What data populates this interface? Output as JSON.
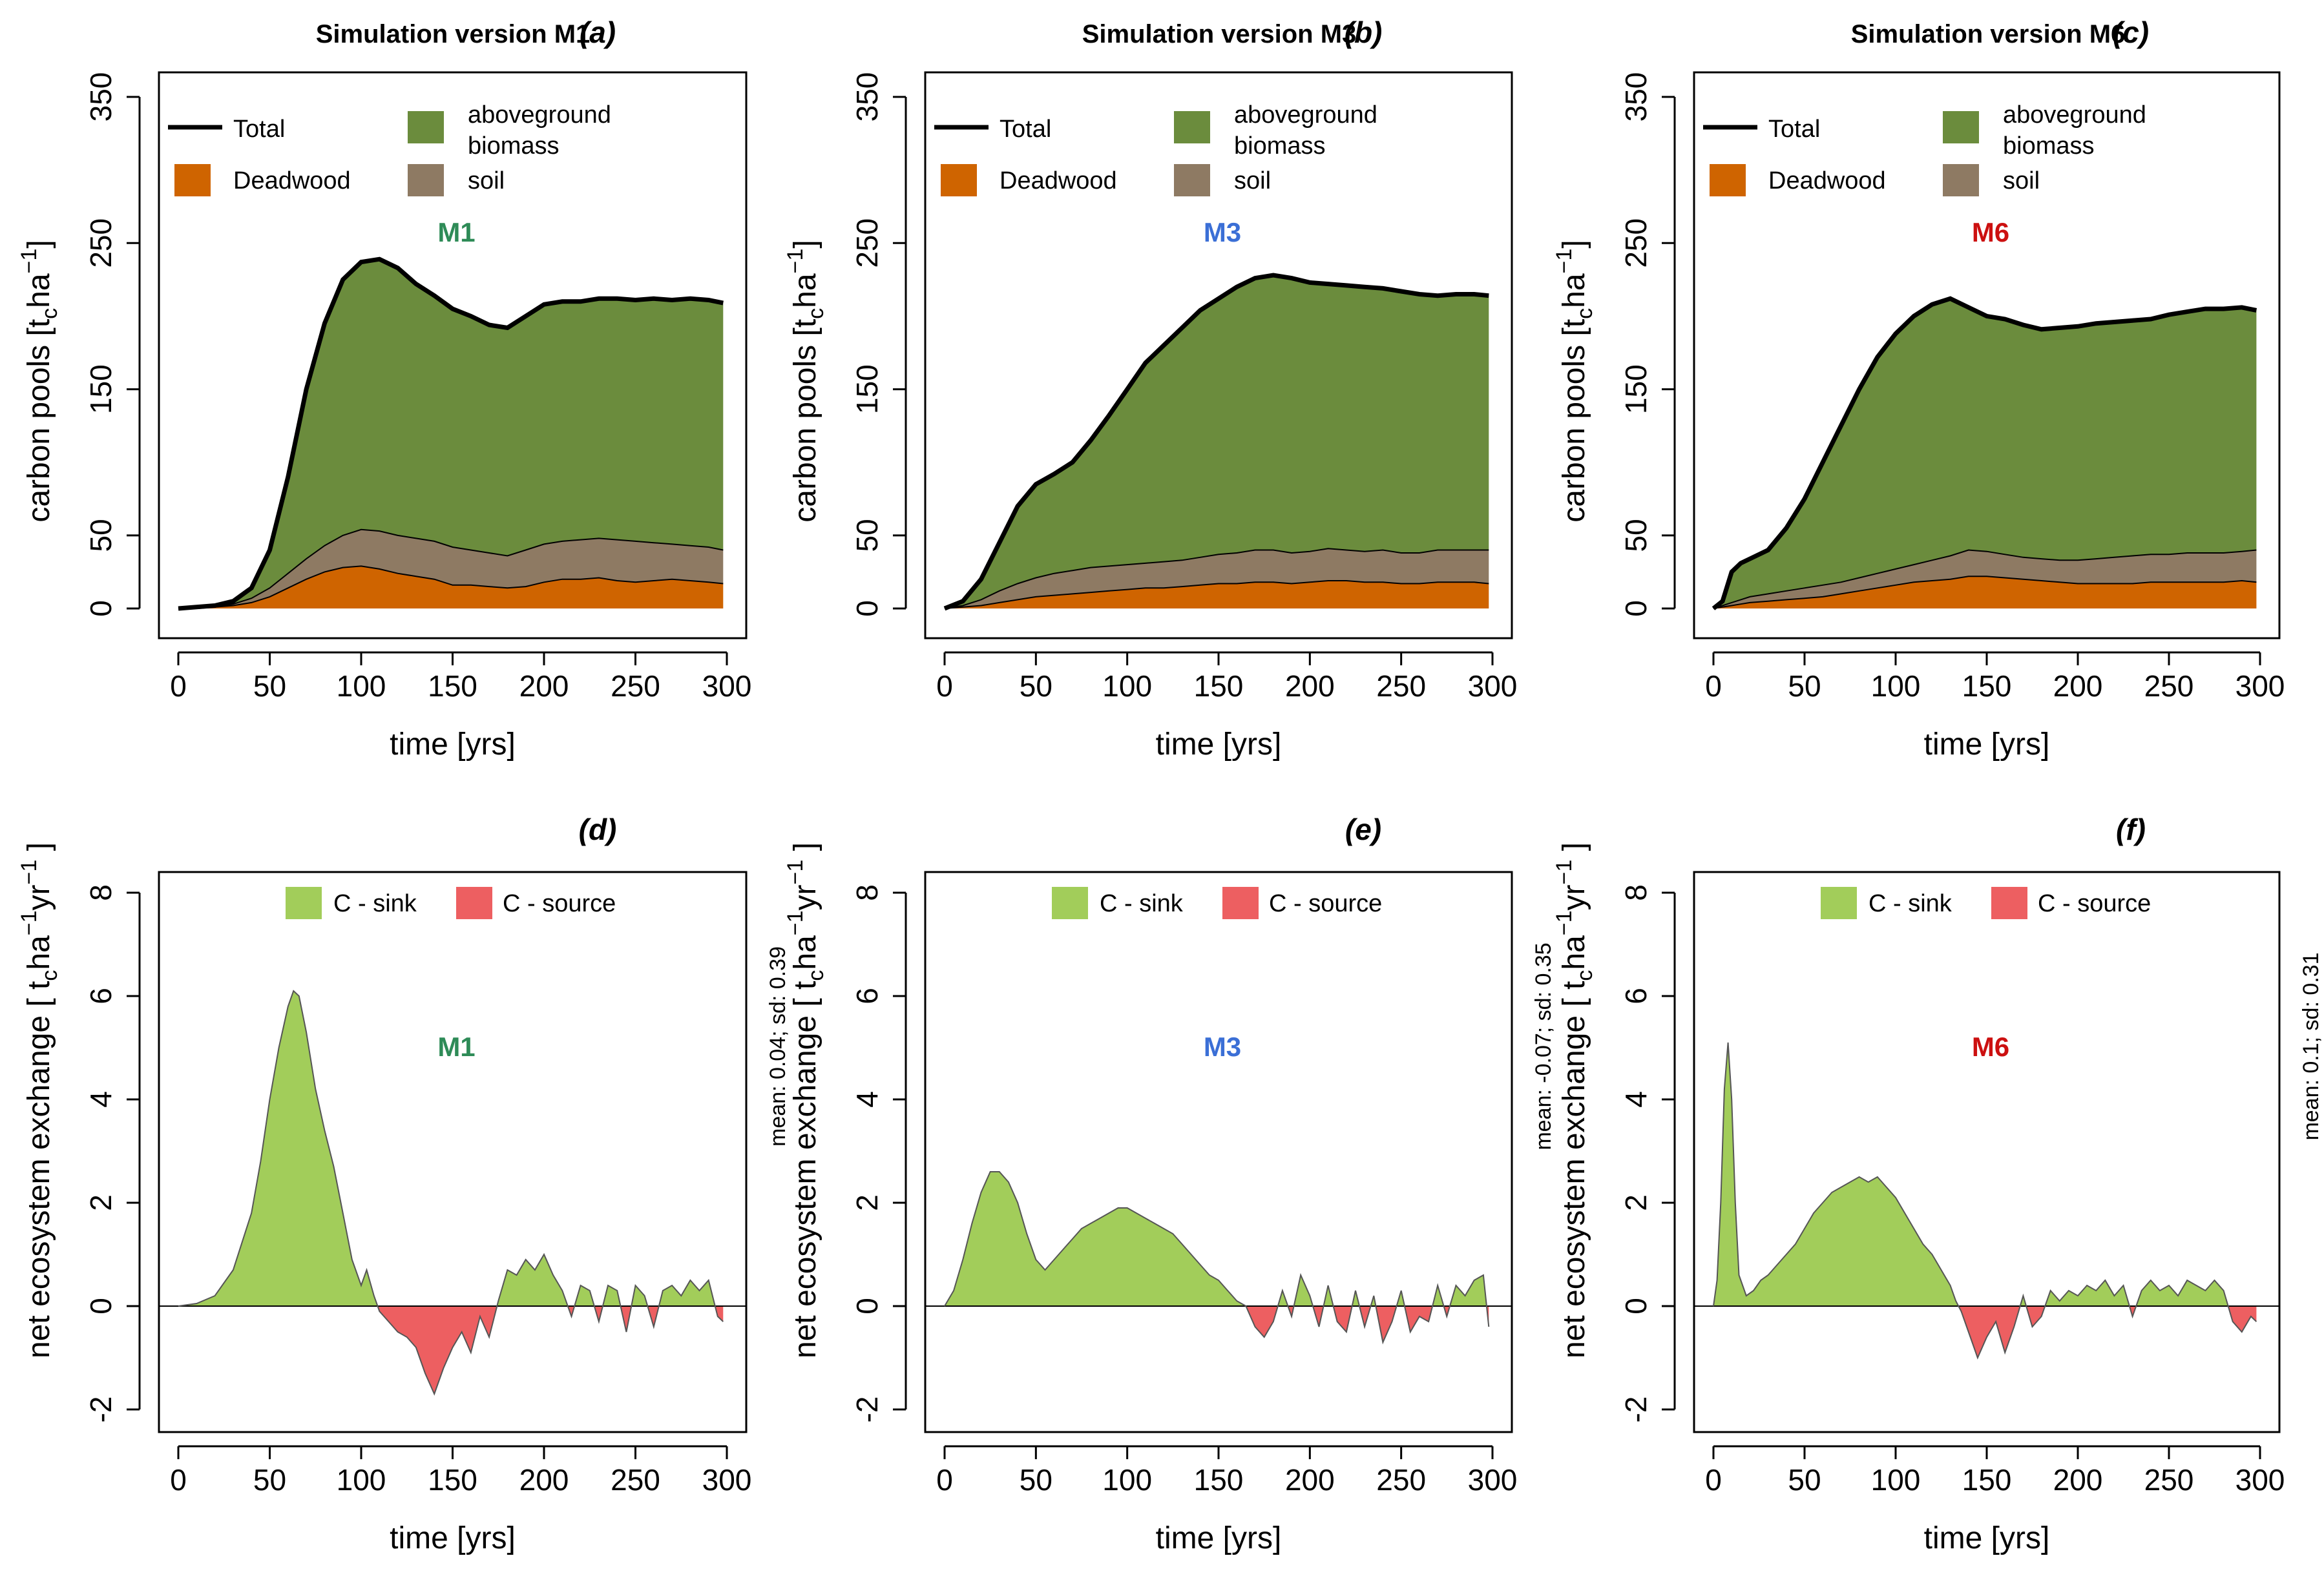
{
  "colors": {
    "deadwood": "#cf6400",
    "soil": "#8e7a63",
    "agb": "#6b8c3d",
    "sink": "#a2cd5a",
    "source": "#ed5f61",
    "M1": "#2e8b57",
    "M3": "#3b6fd6",
    "M6": "#cc1010"
  },
  "chart_data": [
    {
      "type": "area",
      "id": "a",
      "panel_label": "(a)",
      "title": "Simulation version M1",
      "model": "M1",
      "xlabel": "time [yrs]",
      "ylabel_parts": [
        "carbon pools [t",
        "c",
        "ha",
        "−1",
        "]"
      ],
      "xlim": [
        0,
        300
      ],
      "ylim": [
        0,
        350
      ],
      "xticks": [
        0,
        50,
        100,
        150,
        200,
        250,
        300
      ],
      "yticks": [
        0,
        50,
        150,
        250,
        350
      ],
      "legend": {
        "total": "Total",
        "deadwood": "Deadwood",
        "agb": "aboveground",
        "agb2": "biomass",
        "soil": "soil"
      },
      "x": [
        0,
        10,
        20,
        30,
        40,
        50,
        60,
        70,
        80,
        90,
        100,
        110,
        120,
        130,
        140,
        150,
        160,
        170,
        180,
        190,
        200,
        210,
        220,
        230,
        240,
        250,
        260,
        270,
        280,
        290,
        298
      ],
      "series": [
        {
          "name": "Deadwood",
          "values": [
            0,
            0,
            1,
            2,
            4,
            8,
            14,
            20,
            25,
            28,
            29,
            27,
            24,
            22,
            20,
            16,
            16,
            15,
            14,
            15,
            18,
            20,
            20,
            21,
            19,
            18,
            19,
            20,
            19,
            18,
            17
          ]
        },
        {
          "name": "soil_top",
          "values": [
            0,
            0,
            1,
            3,
            7,
            14,
            24,
            34,
            43,
            50,
            54,
            53,
            50,
            48,
            46,
            42,
            40,
            38,
            36,
            40,
            44,
            46,
            47,
            48,
            47,
            46,
            45,
            44,
            43,
            42,
            40
          ]
        },
        {
          "name": "Total",
          "values": [
            0,
            1,
            2,
            5,
            14,
            40,
            90,
            150,
            195,
            225,
            237,
            239,
            233,
            222,
            214,
            205,
            200,
            194,
            192,
            200,
            208,
            210,
            210,
            212,
            212,
            211,
            212,
            211,
            212,
            211,
            209
          ]
        }
      ]
    },
    {
      "type": "area",
      "id": "b",
      "panel_label": "(b)",
      "title": "Simulation version M3",
      "model": "M3",
      "xlabel": "time [yrs]",
      "ylabel_parts": [
        "carbon pools [t",
        "c",
        "ha",
        "−1",
        "]"
      ],
      "xlim": [
        0,
        300
      ],
      "ylim": [
        0,
        350
      ],
      "xticks": [
        0,
        50,
        100,
        150,
        200,
        250,
        300
      ],
      "yticks": [
        0,
        50,
        150,
        250,
        350
      ],
      "legend": {
        "total": "Total",
        "deadwood": "Deadwood",
        "agb": "aboveground",
        "agb2": "biomass",
        "soil": "soil"
      },
      "x": [
        0,
        10,
        20,
        30,
        40,
        50,
        60,
        70,
        80,
        90,
        100,
        110,
        120,
        130,
        140,
        150,
        160,
        170,
        180,
        190,
        200,
        210,
        220,
        230,
        240,
        250,
        260,
        270,
        280,
        290,
        298
      ],
      "series": [
        {
          "name": "Deadwood",
          "values": [
            0,
            1,
            2,
            4,
            6,
            8,
            9,
            10,
            11,
            12,
            13,
            14,
            14,
            15,
            16,
            17,
            17,
            18,
            18,
            17,
            18,
            19,
            19,
            18,
            18,
            17,
            17,
            18,
            18,
            18,
            17
          ]
        },
        {
          "name": "soil_top",
          "values": [
            0,
            2,
            6,
            12,
            17,
            21,
            24,
            26,
            28,
            29,
            30,
            31,
            32,
            33,
            35,
            37,
            38,
            40,
            40,
            38,
            39,
            41,
            40,
            39,
            40,
            38,
            38,
            40,
            40,
            40,
            40
          ]
        },
        {
          "name": "Total",
          "values": [
            0,
            5,
            20,
            45,
            70,
            85,
            92,
            100,
            115,
            132,
            150,
            168,
            180,
            192,
            204,
            212,
            220,
            226,
            228,
            226,
            223,
            222,
            221,
            220,
            219,
            217,
            215,
            214,
            215,
            215,
            214
          ]
        }
      ]
    },
    {
      "type": "area",
      "id": "c",
      "panel_label": "(c)",
      "title": "Simulation version M6",
      "model": "M6",
      "xlabel": "time [yrs]",
      "ylabel_parts": [
        "carbon pools [t",
        "c",
        "ha",
        "−1",
        "]"
      ],
      "xlim": [
        0,
        300
      ],
      "ylim": [
        0,
        350
      ],
      "xticks": [
        0,
        50,
        100,
        150,
        200,
        250,
        300
      ],
      "yticks": [
        0,
        50,
        150,
        250,
        350
      ],
      "legend": {
        "total": "Total",
        "deadwood": "Deadwood",
        "agb": "aboveground",
        "agb2": "biomass",
        "soil": "soil"
      },
      "x": [
        0,
        5,
        10,
        15,
        20,
        30,
        40,
        50,
        60,
        70,
        80,
        90,
        100,
        110,
        120,
        130,
        140,
        150,
        160,
        170,
        180,
        190,
        200,
        210,
        220,
        230,
        240,
        250,
        260,
        270,
        280,
        290,
        298
      ],
      "series": [
        {
          "name": "Deadwood",
          "values": [
            0,
            1,
            2,
            3,
            4,
            5,
            6,
            7,
            8,
            10,
            12,
            14,
            16,
            18,
            19,
            20,
            22,
            22,
            21,
            20,
            19,
            18,
            17,
            17,
            17,
            17,
            18,
            18,
            18,
            18,
            18,
            19,
            18
          ]
        },
        {
          "name": "soil_top",
          "values": [
            0,
            2,
            4,
            6,
            8,
            10,
            12,
            14,
            16,
            18,
            21,
            24,
            27,
            30,
            33,
            36,
            40,
            39,
            37,
            35,
            34,
            33,
            33,
            34,
            35,
            36,
            37,
            37,
            38,
            38,
            38,
            39,
            40
          ]
        },
        {
          "name": "Total",
          "values": [
            0,
            5,
            25,
            31,
            34,
            40,
            55,
            75,
            100,
            125,
            150,
            172,
            188,
            200,
            208,
            212,
            206,
            200,
            198,
            194,
            191,
            192,
            193,
            195,
            196,
            197,
            198,
            201,
            203,
            205,
            205,
            206,
            204
          ]
        }
      ]
    },
    {
      "type": "area",
      "id": "d",
      "panel_label": "(d)",
      "model": "M1",
      "xlabel": "time [yrs]",
      "ylabel_parts": [
        "net ecosystem exchange [ t",
        "c",
        "ha",
        "−1",
        "yr",
        "−1",
        " ]"
      ],
      "stat_text": "mean: 0.04; sd: 0.39",
      "xlim": [
        0,
        300
      ],
      "ylim": [
        -2,
        8
      ],
      "xticks": [
        0,
        50,
        100,
        150,
        200,
        250,
        300
      ],
      "yticks": [
        -2,
        0,
        2,
        4,
        6,
        8
      ],
      "legend": {
        "sink": "C - sink",
        "source": "C - source"
      },
      "x": [
        0,
        10,
        20,
        30,
        40,
        45,
        50,
        55,
        60,
        63,
        66,
        70,
        75,
        80,
        85,
        90,
        95,
        100,
        103,
        107,
        110,
        115,
        120,
        125,
        130,
        135,
        140,
        145,
        150,
        155,
        160,
        165,
        170,
        175,
        180,
        185,
        190,
        195,
        200,
        205,
        210,
        215,
        220,
        225,
        230,
        235,
        240,
        245,
        250,
        255,
        260,
        265,
        270,
        275,
        280,
        285,
        290,
        295,
        298
      ],
      "values": [
        0,
        0.05,
        0.2,
        0.7,
        1.8,
        2.8,
        4.0,
        5.0,
        5.8,
        6.1,
        6.0,
        5.3,
        4.2,
        3.4,
        2.7,
        1.8,
        0.9,
        0.4,
        0.7,
        0.2,
        -0.1,
        -0.3,
        -0.5,
        -0.6,
        -0.8,
        -1.3,
        -1.7,
        -1.2,
        -0.8,
        -0.5,
        -0.9,
        -0.2,
        -0.6,
        0.1,
        0.7,
        0.6,
        0.9,
        0.7,
        1.0,
        0.6,
        0.3,
        -0.2,
        0.4,
        0.3,
        -0.3,
        0.4,
        0.3,
        -0.5,
        0.4,
        0.2,
        -0.4,
        0.3,
        0.4,
        0.2,
        0.5,
        0.3,
        0.5,
        -0.2,
        -0.3
      ]
    },
    {
      "type": "area",
      "id": "e",
      "panel_label": "(e)",
      "model": "M3",
      "xlabel": "time [yrs]",
      "ylabel_parts": [
        "net ecosystem exchange [ t",
        "c",
        "ha",
        "−1",
        "yr",
        "−1",
        " ]"
      ],
      "stat_text": "mean: -0.07; sd: 0.35",
      "xlim": [
        0,
        300
      ],
      "ylim": [
        -2,
        8
      ],
      "xticks": [
        0,
        50,
        100,
        150,
        200,
        250,
        300
      ],
      "yticks": [
        -2,
        0,
        2,
        4,
        6,
        8
      ],
      "legend": {
        "sink": "C - sink",
        "source": "C - source"
      },
      "x": [
        0,
        5,
        10,
        15,
        20,
        25,
        30,
        35,
        40,
        45,
        50,
        55,
        60,
        65,
        70,
        75,
        80,
        85,
        90,
        95,
        100,
        105,
        110,
        115,
        120,
        125,
        130,
        135,
        140,
        145,
        150,
        155,
        160,
        165,
        170,
        175,
        180,
        185,
        190,
        195,
        200,
        205,
        210,
        215,
        220,
        225,
        230,
        235,
        240,
        245,
        250,
        255,
        260,
        265,
        270,
        275,
        280,
        285,
        290,
        295,
        298
      ],
      "values": [
        0,
        0.3,
        0.9,
        1.6,
        2.2,
        2.6,
        2.6,
        2.4,
        2.0,
        1.4,
        0.9,
        0.7,
        0.9,
        1.1,
        1.3,
        1.5,
        1.6,
        1.7,
        1.8,
        1.9,
        1.9,
        1.8,
        1.7,
        1.6,
        1.5,
        1.4,
        1.2,
        1.0,
        0.8,
        0.6,
        0.5,
        0.3,
        0.1,
        0.0,
        -0.4,
        -0.6,
        -0.3,
        0.3,
        -0.2,
        0.6,
        0.2,
        -0.4,
        0.4,
        -0.3,
        -0.5,
        0.3,
        -0.4,
        0.2,
        -0.7,
        -0.3,
        0.3,
        -0.5,
        -0.2,
        -0.3,
        0.4,
        -0.2,
        0.4,
        0.2,
        0.5,
        0.6,
        -0.4
      ]
    },
    {
      "type": "area",
      "id": "f",
      "panel_label": "(f)",
      "model": "M6",
      "xlabel": "time [yrs]",
      "ylabel_parts": [
        "net ecosystem exchange [ t",
        "c",
        "ha",
        "−1",
        "yr",
        "−1",
        " ]"
      ],
      "stat_text": "mean: 0.1; sd: 0.31",
      "xlim": [
        0,
        300
      ],
      "ylim": [
        -2,
        8
      ],
      "xticks": [
        0,
        50,
        100,
        150,
        200,
        250,
        300
      ],
      "yticks": [
        -2,
        0,
        2,
        4,
        6,
        8
      ],
      "legend": {
        "sink": "C - sink",
        "source": "C - source"
      },
      "x": [
        0,
        2,
        4,
        6,
        8,
        10,
        12,
        14,
        18,
        22,
        26,
        30,
        35,
        40,
        45,
        50,
        55,
        60,
        65,
        70,
        75,
        80,
        85,
        90,
        95,
        100,
        105,
        110,
        115,
        120,
        125,
        130,
        133,
        136,
        140,
        145,
        150,
        155,
        160,
        165,
        170,
        175,
        180,
        185,
        190,
        195,
        200,
        205,
        210,
        215,
        220,
        225,
        230,
        235,
        240,
        245,
        250,
        255,
        260,
        265,
        270,
        275,
        280,
        285,
        290,
        295,
        298
      ],
      "values": [
        0,
        0.5,
        2.0,
        4.2,
        5.1,
        4.0,
        2.0,
        0.6,
        0.2,
        0.3,
        0.5,
        0.6,
        0.8,
        1.0,
        1.2,
        1.5,
        1.8,
        2.0,
        2.2,
        2.3,
        2.4,
        2.5,
        2.4,
        2.5,
        2.3,
        2.1,
        1.8,
        1.5,
        1.2,
        1.0,
        0.7,
        0.4,
        0.1,
        -0.1,
        -0.5,
        -1.0,
        -0.6,
        -0.3,
        -0.9,
        -0.4,
        0.2,
        -0.4,
        -0.2,
        0.3,
        0.1,
        0.3,
        0.2,
        0.4,
        0.3,
        0.5,
        0.2,
        0.4,
        -0.2,
        0.3,
        0.5,
        0.3,
        0.4,
        0.2,
        0.5,
        0.4,
        0.3,
        0.5,
        0.3,
        -0.3,
        -0.5,
        -0.2,
        -0.3
      ]
    }
  ]
}
